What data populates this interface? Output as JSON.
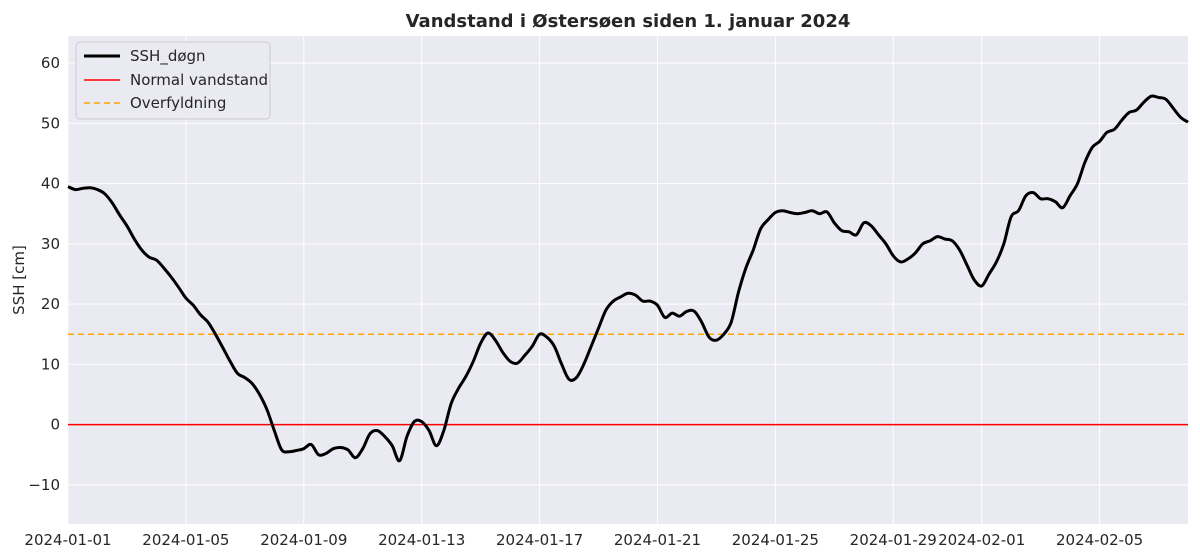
{
  "chart_data": {
    "type": "line",
    "title": "Vandstand i Østersøen siden 1. januar 2024",
    "xlabel": "",
    "ylabel": "SSH [cm]",
    "xlim": [
      "2024-01-01",
      "2024-02-08"
    ],
    "ylim": [
      -16.5,
      64.5
    ],
    "x_ticks": [
      "2024-01-01",
      "2024-01-05",
      "2024-01-09",
      "2024-01-13",
      "2024-01-17",
      "2024-01-21",
      "2024-01-25",
      "2024-01-29",
      "2024-02-01",
      "2024-02-05"
    ],
    "y_ticks": [
      -10,
      0,
      10,
      20,
      30,
      40,
      50,
      60
    ],
    "y_tick_labels": [
      "−10",
      "0",
      "10",
      "20",
      "30",
      "40",
      "50",
      "60"
    ],
    "grid": true,
    "legend_position": "top-left",
    "series": [
      {
        "name": "SSH_døgn",
        "color": "#000000",
        "style": "solid",
        "points": [
          [
            "2024-01-01 00:00",
            39.5
          ],
          [
            "2024-01-01 06:00",
            39.0
          ],
          [
            "2024-01-01 12:00",
            39.2
          ],
          [
            "2024-01-01 18:00",
            39.3
          ],
          [
            "2024-01-02 00:00",
            39.0
          ],
          [
            "2024-01-02 06:00",
            38.3
          ],
          [
            "2024-01-02 12:00",
            36.8
          ],
          [
            "2024-01-02 18:00",
            34.8
          ],
          [
            "2024-01-03 00:00",
            33.0
          ],
          [
            "2024-01-03 06:00",
            30.8
          ],
          [
            "2024-01-03 12:00",
            29.0
          ],
          [
            "2024-01-03 18:00",
            27.8
          ],
          [
            "2024-01-04 00:00",
            27.3
          ],
          [
            "2024-01-04 06:00",
            26.0
          ],
          [
            "2024-01-04 12:00",
            24.5
          ],
          [
            "2024-01-04 18:00",
            22.8
          ],
          [
            "2024-01-05 00:00",
            21.0
          ],
          [
            "2024-01-05 06:00",
            19.8
          ],
          [
            "2024-01-05 12:00",
            18.2
          ],
          [
            "2024-01-05 18:00",
            17.0
          ],
          [
            "2024-01-06 00:00",
            15.0
          ],
          [
            "2024-01-06 06:00",
            12.8
          ],
          [
            "2024-01-06 12:00",
            10.5
          ],
          [
            "2024-01-06 18:00",
            8.5
          ],
          [
            "2024-01-07 00:00",
            7.8
          ],
          [
            "2024-01-07 06:00",
            6.8
          ],
          [
            "2024-01-07 12:00",
            5.0
          ],
          [
            "2024-01-07 18:00",
            2.5
          ],
          [
            "2024-01-08 00:00",
            -1.0
          ],
          [
            "2024-01-08 06:00",
            -4.2
          ],
          [
            "2024-01-08 12:00",
            -4.5
          ],
          [
            "2024-01-08 18:00",
            -4.3
          ],
          [
            "2024-01-09 00:00",
            -4.0
          ],
          [
            "2024-01-09 06:00",
            -3.3
          ],
          [
            "2024-01-09 12:00",
            -5.0
          ],
          [
            "2024-01-09 18:00",
            -4.8
          ],
          [
            "2024-01-10 00:00",
            -4.0
          ],
          [
            "2024-01-10 06:00",
            -3.8
          ],
          [
            "2024-01-10 12:00",
            -4.2
          ],
          [
            "2024-01-10 18:00",
            -5.5
          ],
          [
            "2024-01-11 00:00",
            -4.0
          ],
          [
            "2024-01-11 06:00",
            -1.5
          ],
          [
            "2024-01-11 12:00",
            -1.0
          ],
          [
            "2024-01-11 18:00",
            -2.0
          ],
          [
            "2024-01-12 00:00",
            -3.5
          ],
          [
            "2024-01-12 06:00",
            -6.0
          ],
          [
            "2024-01-12 12:00",
            -2.0
          ],
          [
            "2024-01-12 18:00",
            0.5
          ],
          [
            "2024-01-13 00:00",
            0.5
          ],
          [
            "2024-01-13 06:00",
            -1.0
          ],
          [
            "2024-01-13 12:00",
            -3.5
          ],
          [
            "2024-01-13 18:00",
            -1.0
          ],
          [
            "2024-01-14 00:00",
            3.5
          ],
          [
            "2024-01-14 06:00",
            6.0
          ],
          [
            "2024-01-14 12:00",
            8.0
          ],
          [
            "2024-01-14 18:00",
            10.5
          ],
          [
            "2024-01-15 00:00",
            13.5
          ],
          [
            "2024-01-15 06:00",
            15.2
          ],
          [
            "2024-01-15 12:00",
            14.0
          ],
          [
            "2024-01-15 18:00",
            12.0
          ],
          [
            "2024-01-16 00:00",
            10.5
          ],
          [
            "2024-01-16 06:00",
            10.2
          ],
          [
            "2024-01-16 12:00",
            11.5
          ],
          [
            "2024-01-16 18:00",
            13.0
          ],
          [
            "2024-01-17 00:00",
            15.0
          ],
          [
            "2024-01-17 06:00",
            14.5
          ],
          [
            "2024-01-17 12:00",
            13.0
          ],
          [
            "2024-01-17 18:00",
            10.0
          ],
          [
            "2024-01-18 00:00",
            7.5
          ],
          [
            "2024-01-18 06:00",
            7.8
          ],
          [
            "2024-01-18 12:00",
            10.0
          ],
          [
            "2024-01-18 18:00",
            13.0
          ],
          [
            "2024-01-19 00:00",
            16.0
          ],
          [
            "2024-01-19 06:00",
            19.0
          ],
          [
            "2024-01-19 12:00",
            20.5
          ],
          [
            "2024-01-19 18:00",
            21.2
          ],
          [
            "2024-01-20 00:00",
            21.8
          ],
          [
            "2024-01-20 06:00",
            21.5
          ],
          [
            "2024-01-20 12:00",
            20.5
          ],
          [
            "2024-01-20 18:00",
            20.5
          ],
          [
            "2024-01-21 00:00",
            19.8
          ],
          [
            "2024-01-21 06:00",
            17.8
          ],
          [
            "2024-01-21 12:00",
            18.5
          ],
          [
            "2024-01-21 18:00",
            18.0
          ],
          [
            "2024-01-22 00:00",
            18.8
          ],
          [
            "2024-01-22 06:00",
            18.8
          ],
          [
            "2024-01-22 12:00",
            17.0
          ],
          [
            "2024-01-22 18:00",
            14.5
          ],
          [
            "2024-01-23 00:00",
            14.0
          ],
          [
            "2024-01-23 06:00",
            15.0
          ],
          [
            "2024-01-23 12:00",
            17.0
          ],
          [
            "2024-01-23 18:00",
            22.0
          ],
          [
            "2024-01-24 00:00",
            26.0
          ],
          [
            "2024-01-24 06:00",
            29.0
          ],
          [
            "2024-01-24 12:00",
            32.5
          ],
          [
            "2024-01-24 18:00",
            34.0
          ],
          [
            "2024-01-25 00:00",
            35.2
          ],
          [
            "2024-01-25 06:00",
            35.5
          ],
          [
            "2024-01-25 12:00",
            35.2
          ],
          [
            "2024-01-25 18:00",
            35.0
          ],
          [
            "2024-01-26 00:00",
            35.2
          ],
          [
            "2024-01-26 06:00",
            35.5
          ],
          [
            "2024-01-26 12:00",
            35.0
          ],
          [
            "2024-01-26 18:00",
            35.3
          ],
          [
            "2024-01-27 00:00",
            33.5
          ],
          [
            "2024-01-27 06:00",
            32.2
          ],
          [
            "2024-01-27 12:00",
            32.0
          ],
          [
            "2024-01-27 18:00",
            31.5
          ],
          [
            "2024-01-28 00:00",
            33.5
          ],
          [
            "2024-01-28 06:00",
            33.0
          ],
          [
            "2024-01-28 12:00",
            31.5
          ],
          [
            "2024-01-28 18:00",
            30.0
          ],
          [
            "2024-01-29 00:00",
            28.0
          ],
          [
            "2024-01-29 06:00",
            27.0
          ],
          [
            "2024-01-29 12:00",
            27.5
          ],
          [
            "2024-01-29 18:00",
            28.5
          ],
          [
            "2024-01-30 00:00",
            30.0
          ],
          [
            "2024-01-30 06:00",
            30.5
          ],
          [
            "2024-01-30 12:00",
            31.2
          ],
          [
            "2024-01-30 18:00",
            30.8
          ],
          [
            "2024-01-31 00:00",
            30.5
          ],
          [
            "2024-01-31 06:00",
            29.0
          ],
          [
            "2024-01-31 12:00",
            26.5
          ],
          [
            "2024-01-31 18:00",
            24.0
          ],
          [
            "2024-02-01 00:00",
            23.0
          ],
          [
            "2024-02-01 06:00",
            25.0
          ],
          [
            "2024-02-01 12:00",
            27.0
          ],
          [
            "2024-02-01 18:00",
            30.0
          ],
          [
            "2024-02-02 00:00",
            34.5
          ],
          [
            "2024-02-02 06:00",
            35.5
          ],
          [
            "2024-02-02 12:00",
            38.0
          ],
          [
            "2024-02-02 18:00",
            38.5
          ],
          [
            "2024-02-03 00:00",
            37.5
          ],
          [
            "2024-02-03 06:00",
            37.5
          ],
          [
            "2024-02-03 12:00",
            37.0
          ],
          [
            "2024-02-03 18:00",
            36.0
          ],
          [
            "2024-02-04 00:00",
            38.0
          ],
          [
            "2024-02-04 06:00",
            40.0
          ],
          [
            "2024-02-04 12:00",
            43.5
          ],
          [
            "2024-02-04 18:00",
            46.0
          ],
          [
            "2024-02-05 00:00",
            47.0
          ],
          [
            "2024-02-05 06:00",
            48.5
          ],
          [
            "2024-02-05 12:00",
            49.0
          ],
          [
            "2024-02-05 18:00",
            50.5
          ],
          [
            "2024-02-06 00:00",
            51.8
          ],
          [
            "2024-02-06 06:00",
            52.2
          ],
          [
            "2024-02-06 12:00",
            53.5
          ],
          [
            "2024-02-06 18:00",
            54.5
          ],
          [
            "2024-02-07 00:00",
            54.3
          ],
          [
            "2024-02-07 06:00",
            54.0
          ],
          [
            "2024-02-07 12:00",
            52.5
          ],
          [
            "2024-02-07 18:00",
            51.0
          ],
          [
            "2024-02-08 00:00",
            50.2
          ]
        ]
      },
      {
        "name": "Normal vandstand",
        "color": "#ff0000",
        "style": "solid",
        "constant": 0
      },
      {
        "name": "Overfyldning",
        "color": "#ffa500",
        "style": "dashed",
        "constant": 15
      }
    ]
  }
}
